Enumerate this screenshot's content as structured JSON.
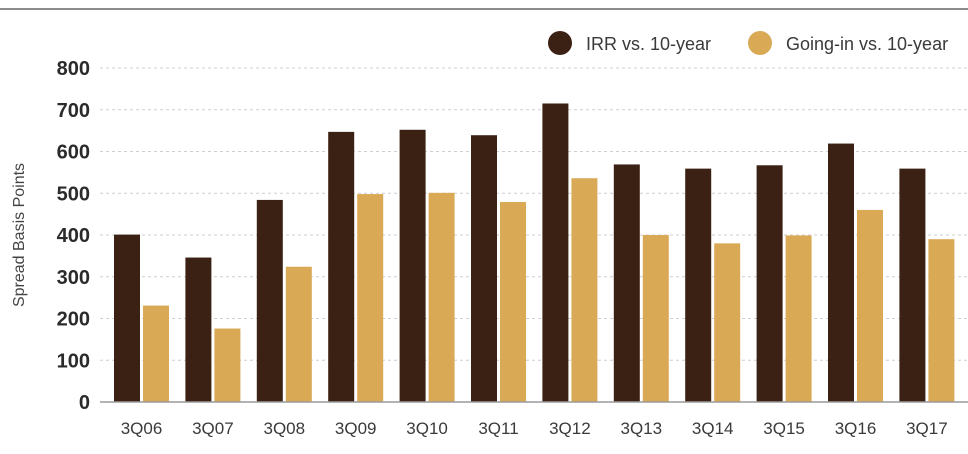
{
  "chart_data": {
    "type": "bar",
    "categories": [
      "3Q06",
      "3Q07",
      "3Q08",
      "3Q09",
      "3Q10",
      "3Q11",
      "3Q12",
      "3Q13",
      "3Q14",
      "3Q15",
      "3Q16",
      "3Q17"
    ],
    "series": [
      {
        "name": "IRR vs. 10-year",
        "values": [
          401,
          346,
          484,
          647,
          652,
          639,
          715,
          569,
          559,
          567,
          619,
          559
        ],
        "color": "#3a2113"
      },
      {
        "name": "Going-in vs. 10-year",
        "values": [
          231,
          176,
          324,
          498,
          501,
          479,
          536,
          400,
          380,
          399,
          460,
          390
        ],
        "color": "#d9a955"
      }
    ],
    "ylabel": "Spread Basis Points",
    "ylim": [
      0,
      800
    ],
    "yticks": [
      "0",
      "100",
      "200",
      "300",
      "400",
      "500",
      "600",
      "700",
      "800"
    ],
    "grid": true,
    "legend_position": "top-right"
  }
}
